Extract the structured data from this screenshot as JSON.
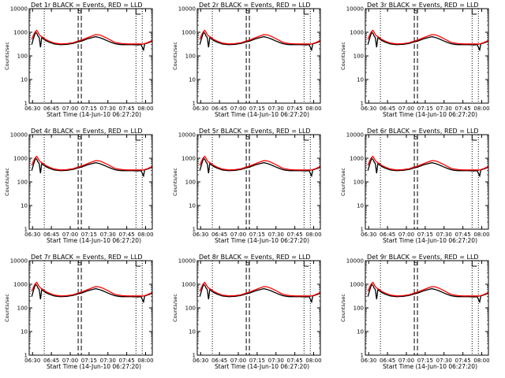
{
  "chart_data": {
    "type": "line",
    "layout": "3x3 grid of small multiples",
    "xlabel": "Start Time (14-Jun-10 06:27:20)",
    "ylabel": "Counts/sec",
    "x_ticks": [
      "06:30",
      "06:45",
      "07:00",
      "07:15",
      "07:30",
      "07:45",
      "08:00"
    ],
    "x_range_min": [
      0,
      98
    ],
    "y_ticks": [
      1,
      10,
      100,
      1000,
      10000
    ],
    "y_range": [
      1,
      10000
    ],
    "y_scale": "log",
    "legend": "in title",
    "series_colors": {
      "events": "#000000",
      "lld": "#ff0000"
    },
    "panels": [
      {
        "title": "Det 1r BLACK = Events, RED = LLD",
        "marker": "S",
        "dotted": [
          12,
          85,
          90
        ],
        "dashed": [
          39,
          41.5
        ]
      },
      {
        "title": "Det 2r BLACK = Events, RED = LLD",
        "marker": "S",
        "dotted": [
          12,
          85,
          90
        ],
        "dashed": [
          39,
          41.5
        ]
      },
      {
        "title": "Det 3r BLACK = Events, RED = LLD",
        "marker": "S",
        "dotted": [
          12,
          85,
          90
        ],
        "dashed": [
          39,
          41.5
        ]
      },
      {
        "title": "Det 4r BLACK = Events, RED = LLD",
        "marker": "S",
        "dotted": [
          12,
          85,
          90
        ],
        "dashed": [
          39,
          41.5
        ]
      },
      {
        "title": "Det 5r BLACK = Events, RED = LLD",
        "marker": "S",
        "dotted": [
          12,
          85,
          90
        ],
        "dashed": [
          39,
          41.5
        ]
      },
      {
        "title": "Det 6r BLACK = Events, RED = LLD",
        "marker": "S",
        "dotted": [
          12,
          85,
          90
        ],
        "dashed": [
          39,
          41.5
        ]
      },
      {
        "title": "Det 7r BLACK = Events, RED = LLD",
        "marker": "S",
        "dotted": [
          12,
          85,
          90
        ],
        "dashed": [
          39,
          41.5
        ]
      },
      {
        "title": "Det 8r BLACK = Events, RED = LLD",
        "marker": "S",
        "dotted": [
          12,
          85,
          90
        ],
        "dashed": [
          39,
          41.5
        ]
      },
      {
        "title": "Det 9r BLACK = Events, RED = LLD",
        "marker": "S",
        "dotted": [
          12,
          85,
          90
        ],
        "dashed": [
          39,
          41.5
        ]
      }
    ],
    "series": [
      {
        "id": "events",
        "x": [
          2,
          4,
          5,
          6,
          7,
          8,
          9,
          10,
          13,
          16,
          20,
          25,
          30,
          35,
          38,
          42,
          46,
          50,
          53,
          56,
          59,
          62,
          65,
          68,
          71,
          74,
          78,
          82,
          86,
          89,
          91,
          92,
          94,
          96,
          98
        ],
        "y": [
          300,
          700,
          1000,
          900,
          700,
          600,
          230,
          600,
          450,
          380,
          320,
          300,
          310,
          340,
          380,
          430,
          520,
          600,
          650,
          600,
          520,
          440,
          380,
          330,
          310,
          300,
          300,
          300,
          290,
          300,
          180,
          320,
          350,
          380,
          420
        ]
      },
      {
        "id": "lld",
        "x": [
          2,
          4,
          5,
          6,
          7,
          8,
          9,
          10,
          13,
          16,
          20,
          25,
          30,
          35,
          38,
          42,
          46,
          50,
          53,
          56,
          59,
          62,
          65,
          68,
          71,
          74,
          78,
          82,
          86,
          89,
          91,
          92,
          94,
          96,
          98
        ],
        "y": [
          500,
          900,
          1100,
          1200,
          1000,
          800,
          700,
          650,
          500,
          420,
          350,
          320,
          330,
          360,
          410,
          480,
          580,
          700,
          800,
          770,
          670,
          560,
          460,
          380,
          350,
          330,
          320,
          320,
          320,
          320,
          320,
          330,
          360,
          400,
          450
        ]
      }
    ]
  }
}
